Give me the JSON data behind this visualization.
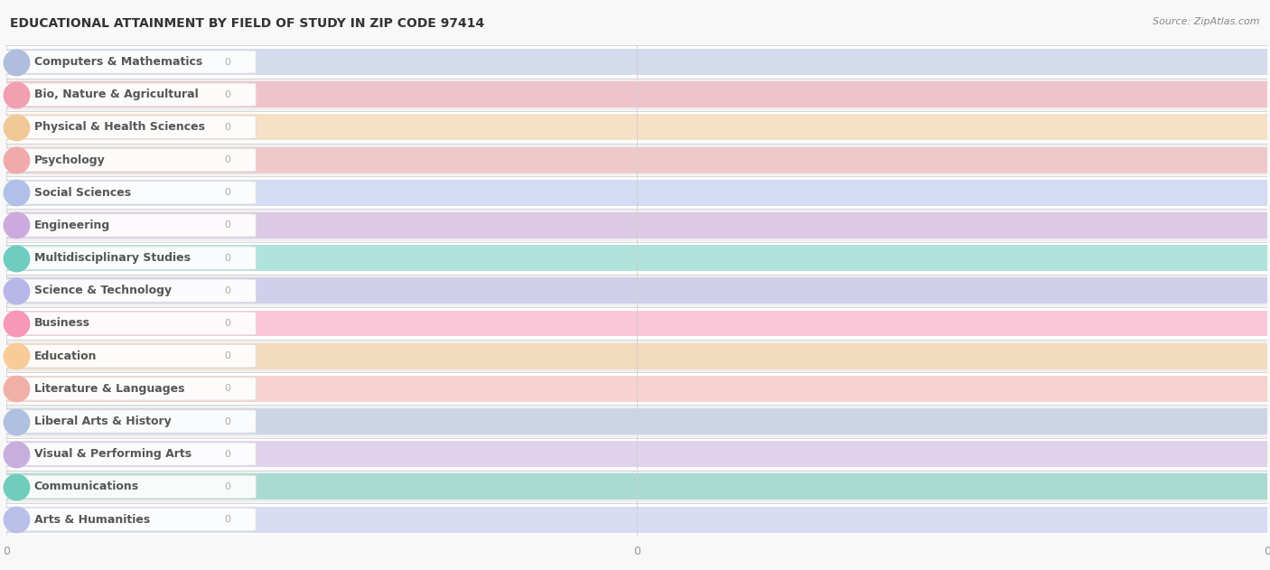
{
  "title": "EDUCATIONAL ATTAINMENT BY FIELD OF STUDY IN ZIP CODE 97414",
  "source": "Source: ZipAtlas.com",
  "categories": [
    "Computers & Mathematics",
    "Bio, Nature & Agricultural",
    "Physical & Health Sciences",
    "Psychology",
    "Social Sciences",
    "Engineering",
    "Multidisciplinary Studies",
    "Science & Technology",
    "Business",
    "Education",
    "Literature & Languages",
    "Liberal Arts & History",
    "Visual & Performing Arts",
    "Communications",
    "Arts & Humanities"
  ],
  "values": [
    0,
    0,
    0,
    0,
    0,
    0,
    0,
    0,
    0,
    0,
    0,
    0,
    0,
    0,
    0
  ],
  "bar_colors": [
    "#b0bedd",
    "#f0a0b0",
    "#f0c898",
    "#f0aaaa",
    "#b0c0e8",
    "#ccaadd",
    "#70ccc0",
    "#b8b8e8",
    "#f898b8",
    "#f8cc98",
    "#f0b0a8",
    "#b0c0e0",
    "#c8aedd",
    "#70ccbb",
    "#b8c0e8"
  ],
  "background_color": "#f0f0f0",
  "row_bg_even": "#ffffff",
  "row_bg_odd": "#efefef",
  "title_fontsize": 10,
  "source_fontsize": 8,
  "label_fontsize": 9,
  "value_fontsize": 8,
  "grid_color": "#d0d0d0",
  "text_color": "#555555",
  "value_color": "#aaaaaa"
}
